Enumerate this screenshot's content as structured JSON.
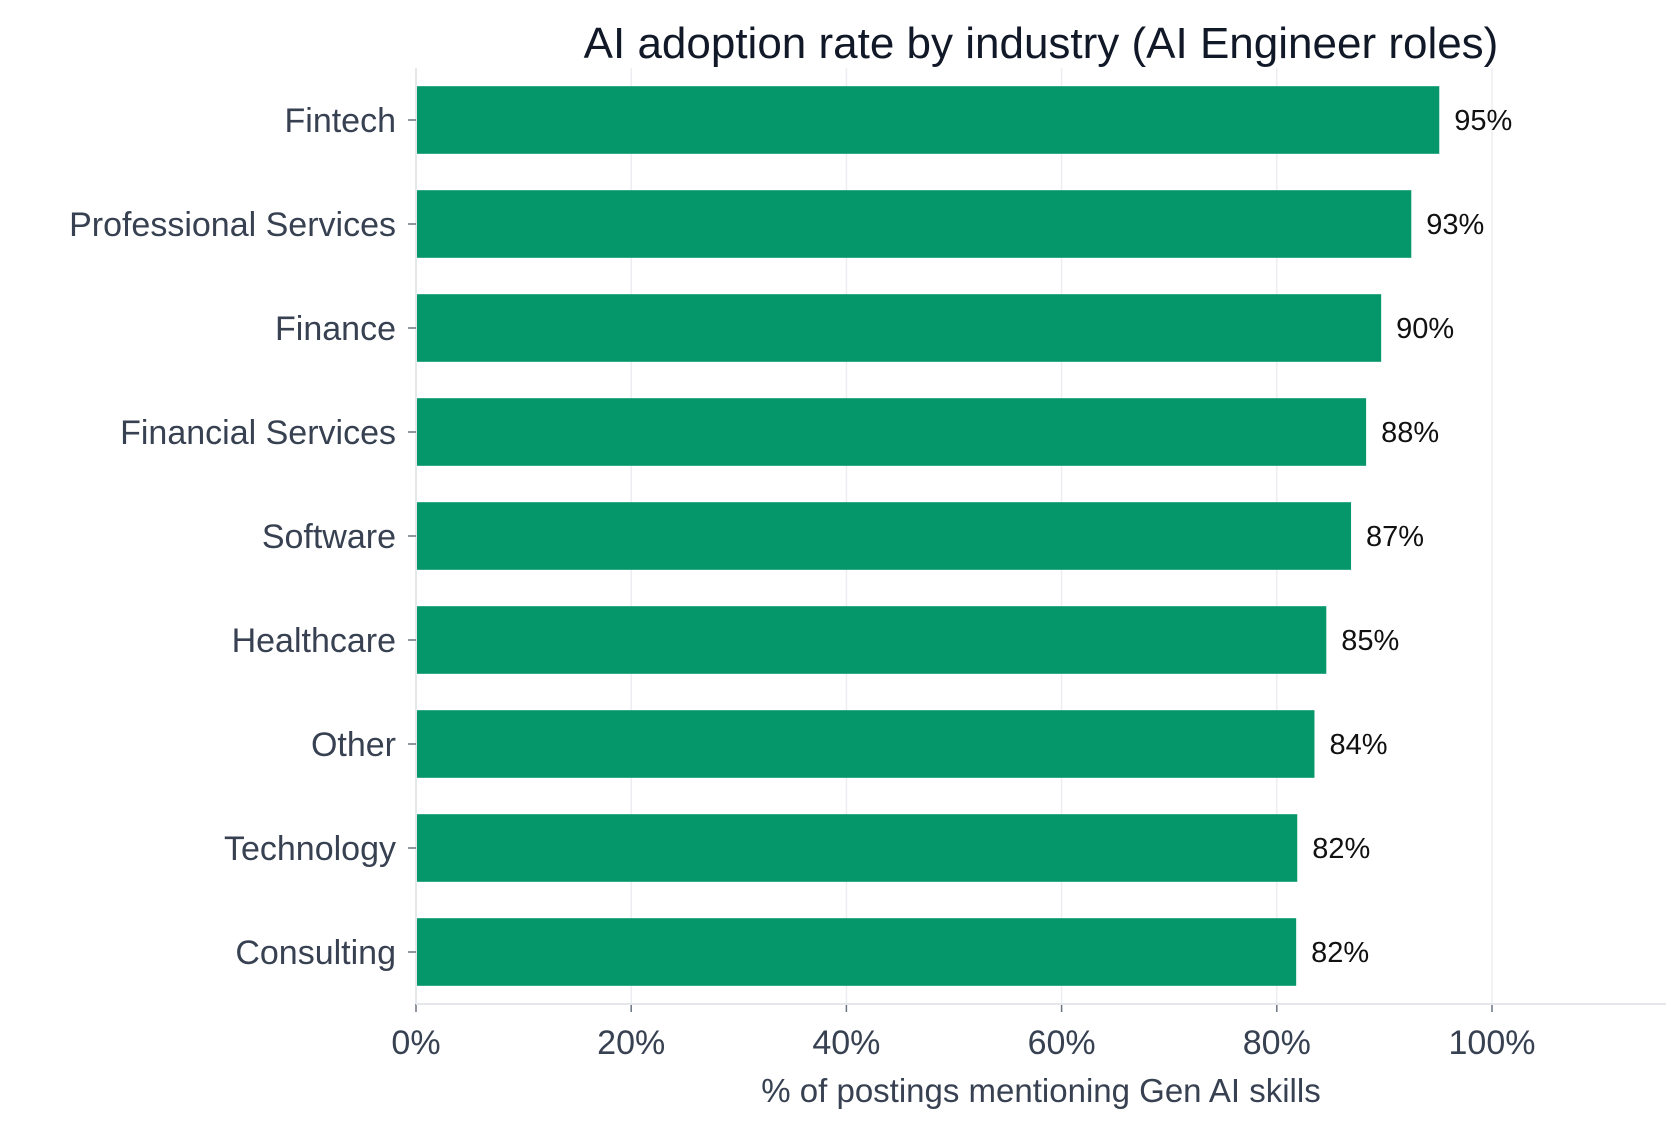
{
  "chart_data": {
    "type": "bar",
    "orientation": "horizontal",
    "title": "AI adoption rate by industry (AI Engineer roles)",
    "xlabel": "% of postings mentioning Gen AI skills",
    "ylabel": "",
    "xlim": [
      0,
      116
    ],
    "xticks": [
      0,
      20,
      40,
      60,
      80,
      100
    ],
    "xtick_labels": [
      "0%",
      "20%",
      "40%",
      "60%",
      "80%",
      "100%"
    ],
    "categories": [
      "Fintech",
      "Professional Services",
      "Finance",
      "Financial Services",
      "Software",
      "Healthcare",
      "Other",
      "Technology",
      "Consulting"
    ],
    "values": [
      95.1,
      92.5,
      89.7,
      88.3,
      86.9,
      84.6,
      83.5,
      81.9,
      81.8
    ],
    "value_labels": [
      "95%",
      "93%",
      "90%",
      "88%",
      "87%",
      "85%",
      "84%",
      "82%",
      "82%"
    ],
    "bar_color": "#059669",
    "grid": "vertical",
    "legend": "none"
  }
}
